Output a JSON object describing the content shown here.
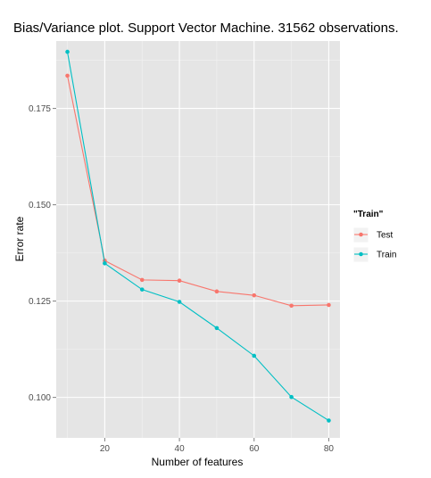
{
  "chart_data": {
    "type": "line",
    "title": "Bias/Variance plot. Support Vector Machine. 31562 observations.",
    "xlabel": "Number of features",
    "ylabel": "Error rate",
    "x": [
      10,
      20,
      30,
      40,
      50,
      60,
      70,
      80
    ],
    "xlim": [
      7,
      83
    ],
    "ylim": [
      0.0895,
      0.1925
    ],
    "xticks": [
      20,
      40,
      60,
      80
    ],
    "xtick_labels": [
      "20",
      "40",
      "60",
      "80"
    ],
    "yticks": [
      0.1,
      0.125,
      0.15,
      0.175
    ],
    "ytick_labels": [
      "0.100",
      "0.125",
      "0.150",
      "0.175"
    ],
    "grid": true,
    "legend": {
      "title": "\"Train\"",
      "position": "right"
    },
    "series": [
      {
        "name": "Test",
        "color": "#F8766D",
        "values": [
          0.1835,
          0.1355,
          0.1305,
          0.1303,
          0.1275,
          0.1265,
          0.1238,
          0.124
        ]
      },
      {
        "name": "Train",
        "color": "#00BFC4",
        "values": [
          0.1897,
          0.1348,
          0.128,
          0.1248,
          0.118,
          0.1108,
          0.1001,
          0.094
        ]
      }
    ]
  },
  "colors": {
    "panel_background": "#E5E5E5",
    "grid_major": "#FFFFFF",
    "grid_minor": "#F2F2F2"
  }
}
